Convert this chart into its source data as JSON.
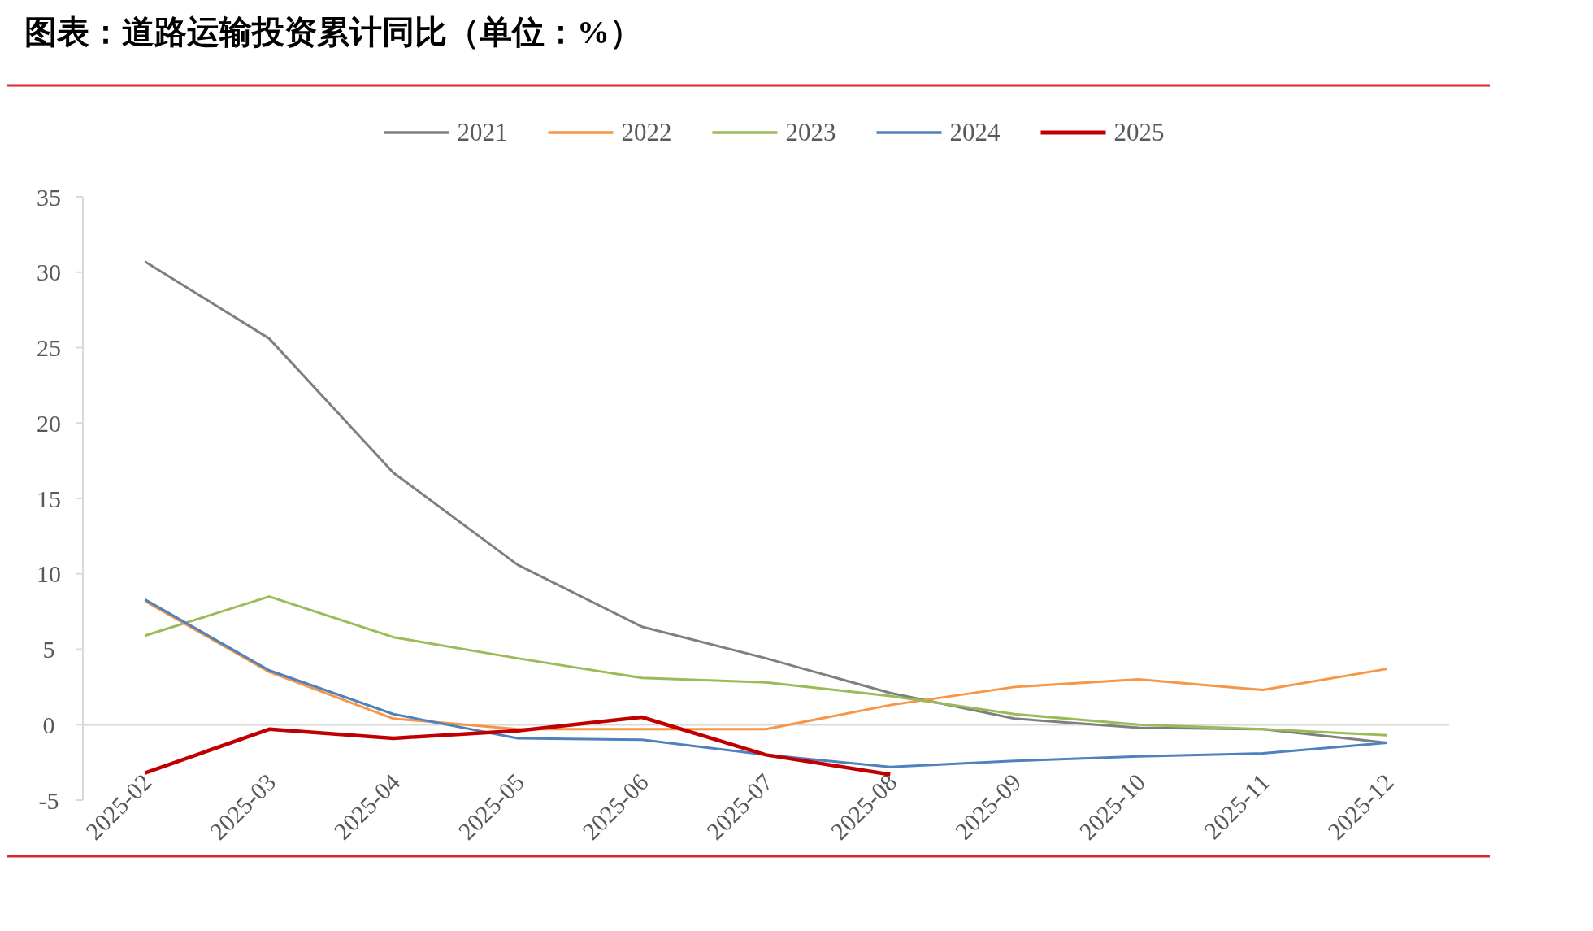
{
  "chart_data": {
    "type": "line",
    "title": "图表：道路运输投资累计同比（单位：%）",
    "categories": [
      "2025-02",
      "2025-03",
      "2025-04",
      "2025-05",
      "2025-06",
      "2025-07",
      "2025-08",
      "2025-09",
      "2025-10",
      "2025-11",
      "2025-12"
    ],
    "ylim": [
      -5,
      35
    ],
    "yticks": [
      -5,
      0,
      5,
      10,
      15,
      20,
      25,
      30,
      35
    ],
    "grid": false,
    "legend": "top",
    "marker": "none",
    "line_style": "solid",
    "series": [
      {
        "name": "2021",
        "color": "#7f7f7f",
        "values": [
          30.7,
          25.6,
          16.7,
          10.6,
          6.5,
          4.4,
          2.1,
          0.4,
          -0.2,
          -0.3,
          -1.2
        ]
      },
      {
        "name": "2022",
        "color": "#f79646",
        "values": [
          8.2,
          3.5,
          0.4,
          -0.3,
          -0.3,
          -0.3,
          1.3,
          2.5,
          3.0,
          2.3,
          3.7
        ]
      },
      {
        "name": "2023",
        "color": "#9bbb59",
        "values": [
          5.9,
          8.5,
          5.8,
          4.4,
          3.1,
          2.8,
          1.9,
          0.7,
          0.0,
          -0.3,
          -0.7
        ]
      },
      {
        "name": "2024",
        "color": "#4f81bd",
        "values": [
          8.3,
          3.6,
          0.7,
          -0.9,
          -1.0,
          -2.0,
          -2.8,
          -2.4,
          -2.1,
          -1.9,
          -1.2
        ]
      },
      {
        "name": "2025",
        "color": "#c00000",
        "values": [
          -3.2,
          -0.3,
          -0.9,
          -0.4,
          0.5,
          -2.0,
          -3.3,
          null,
          null,
          null,
          null
        ]
      }
    ]
  }
}
